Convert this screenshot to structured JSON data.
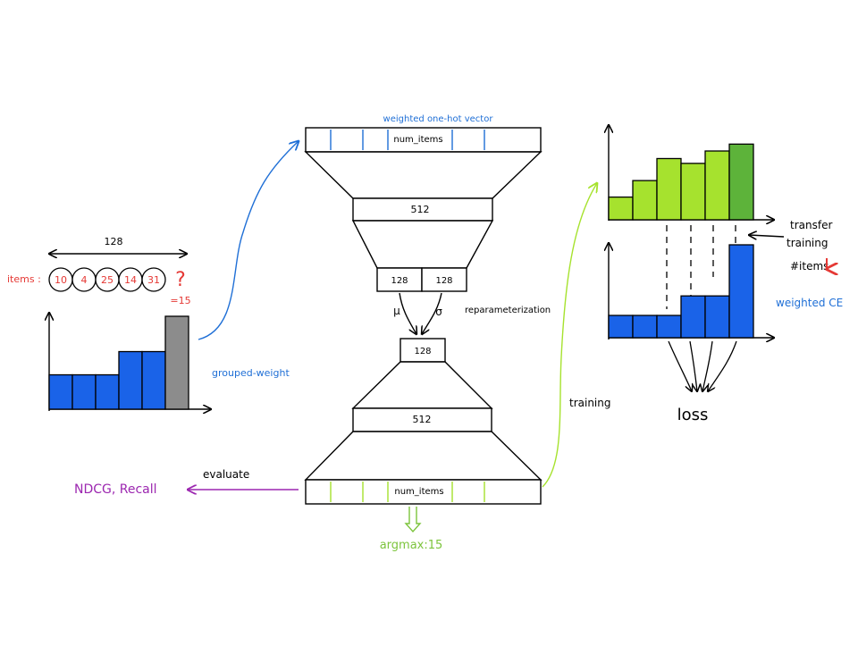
{
  "colors": {
    "blue": "#1a63e8",
    "blue_text": "#1f6fd6",
    "gray": "#8c8c8c",
    "green": "#a6e22e",
    "green_dark": "#5db33a",
    "green_text": "#7cc43c",
    "red": "#e53935",
    "purple": "#9c27b0"
  },
  "left": {
    "width_label": "128",
    "items_label": "items :",
    "items": [
      "10",
      "4",
      "25",
      "14",
      "31"
    ],
    "unknown": "?",
    "unknown_value": "=15",
    "grouped_weight": "grouped-weight",
    "bar_levels": [
      0.37,
      0.37,
      0.37,
      0.62,
      0.62,
      1.0
    ]
  },
  "vae": {
    "input_caption": "weighted one-hot vector",
    "input_label": "num_items",
    "enc_hidden": "512",
    "mu_label": "128",
    "sigma_label": "128",
    "mu_symbol": "μ",
    "sigma_symbol": "σ",
    "reparam": "reparameterization",
    "latent": "128",
    "dec_hidden": "512",
    "output_label": "num_items",
    "argmax": "argmax:15"
  },
  "flows": {
    "evaluate": "evaluate",
    "metrics": "NDCG, Recall",
    "training": "training"
  },
  "right": {
    "transfer": [
      "transfer",
      "training"
    ],
    "items_down": "#items",
    "weighted_ce": "weighted CE",
    "loss": "loss",
    "green_levels": [
      0.33,
      0.57,
      0.89,
      0.82,
      1.0,
      1.1
    ],
    "blue_levels": [
      0.24,
      0.24,
      0.24,
      0.45,
      0.45,
      1.0
    ]
  }
}
